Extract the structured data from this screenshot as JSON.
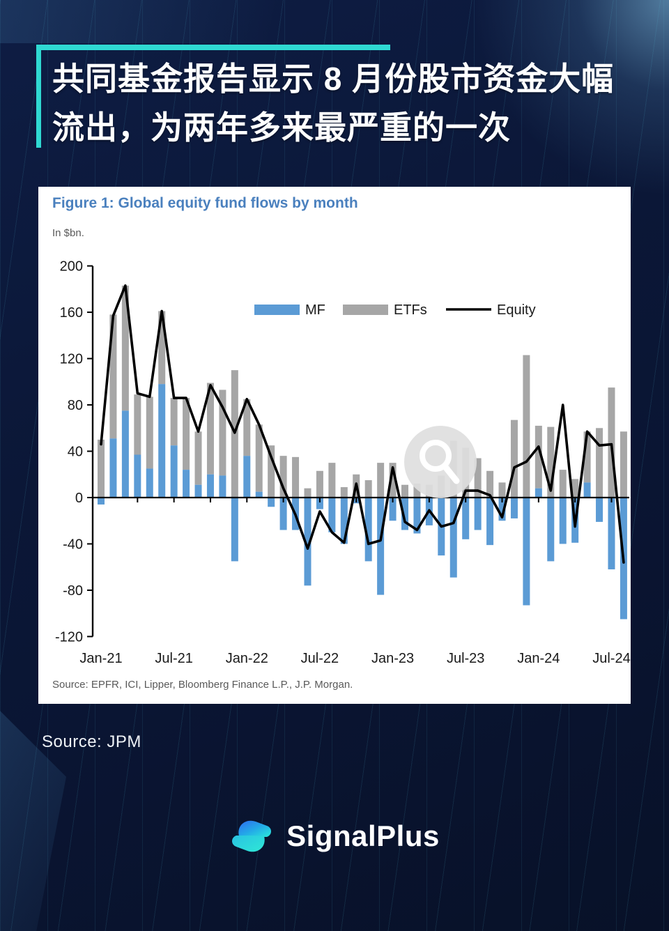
{
  "page": {
    "background": "#0a1533",
    "accent_teal": "#2fd9d2"
  },
  "headline": {
    "line1": "共同基金报告显示 8 月份股市资金大幅",
    "line2": "流出，为两年多来最严重的一次"
  },
  "figure": {
    "title": "Figure 1: Global equity fund flows by month",
    "subtitle": "In $bn.",
    "source": "Source: EPFR, ICI, Lipper, Bloomberg Finance L.P., J.P. Morgan.",
    "title_color": "#4a80be"
  },
  "chart_data": {
    "type": "bar+line",
    "title": "Figure 1: Global equity fund flows by month",
    "units": "In $bn.",
    "stacked_bars": true,
    "grid": false,
    "legend_position": "top-center",
    "ylim": [
      -120,
      200
    ],
    "ytick_step": 40,
    "yticks": [
      200,
      160,
      120,
      80,
      40,
      0,
      -40,
      -80,
      -120
    ],
    "xtick_labels": [
      "Jan-21",
      "Jul-21",
      "Jan-22",
      "Jul-22",
      "Jan-23",
      "Jul-23",
      "Jan-24",
      "Jul-24"
    ],
    "categories": [
      "Jan-21",
      "Feb-21",
      "Mar-21",
      "Apr-21",
      "May-21",
      "Jun-21",
      "Jul-21",
      "Aug-21",
      "Sep-21",
      "Oct-21",
      "Nov-21",
      "Dec-21",
      "Jan-22",
      "Feb-22",
      "Mar-22",
      "Apr-22",
      "May-22",
      "Jun-22",
      "Jul-22",
      "Aug-22",
      "Sep-22",
      "Oct-22",
      "Nov-22",
      "Dec-22",
      "Jan-23",
      "Feb-23",
      "Mar-23",
      "Apr-23",
      "May-23",
      "Jun-23",
      "Jul-23",
      "Aug-23",
      "Sep-23",
      "Oct-23",
      "Nov-23",
      "Dec-23",
      "Jan-24",
      "Feb-24",
      "Mar-24",
      "Apr-24",
      "May-24",
      "Jun-24",
      "Jul-24",
      "Aug-24"
    ],
    "series": [
      {
        "name": "MF",
        "type": "bar",
        "color": "#5b9bd5",
        "values": [
          -6,
          51,
          75,
          37,
          25,
          98,
          45,
          24,
          11,
          20,
          19,
          -55,
          36,
          5,
          -8,
          -28,
          -28,
          -76,
          -10,
          -30,
          -40,
          -5,
          -55,
          -84,
          -20,
          -28,
          -31,
          -24,
          -50,
          -69,
          -36,
          -28,
          -41,
          -20,
          -18,
          -93,
          8,
          -55,
          -40,
          -39,
          13,
          -21,
          -62,
          -105
        ]
      },
      {
        "name": "ETFs",
        "type": "bar",
        "color": "#a6a6a6",
        "values": [
          50,
          107,
          108,
          52,
          62,
          63,
          41,
          62,
          46,
          79,
          74,
          110,
          49,
          58,
          45,
          36,
          35,
          8,
          23,
          30,
          9,
          20,
          15,
          30,
          30,
          11,
          12,
          11,
          19,
          49,
          43,
          34,
          23,
          13,
          67,
          123,
          54,
          61,
          24,
          16,
          44,
          60,
          95,
          57
        ]
      },
      {
        "name": "Equity",
        "type": "line",
        "color": "#000000",
        "values": [
          46,
          157,
          183,
          90,
          87,
          161,
          86,
          86,
          57,
          97,
          78,
          56,
          85,
          63,
          35,
          8,
          -15,
          -44,
          -12,
          -30,
          -39,
          12,
          -40,
          -37,
          26,
          -21,
          -28,
          -11,
          -25,
          -22,
          6,
          6,
          2,
          -17,
          26,
          31,
          44,
          6,
          80,
          -25,
          57,
          45,
          46,
          -56
        ]
      }
    ]
  },
  "watermark": {
    "icon": "magnifier-icon"
  },
  "source_caption": "Source: JPM",
  "footer": {
    "brand": "SignalPlus"
  }
}
